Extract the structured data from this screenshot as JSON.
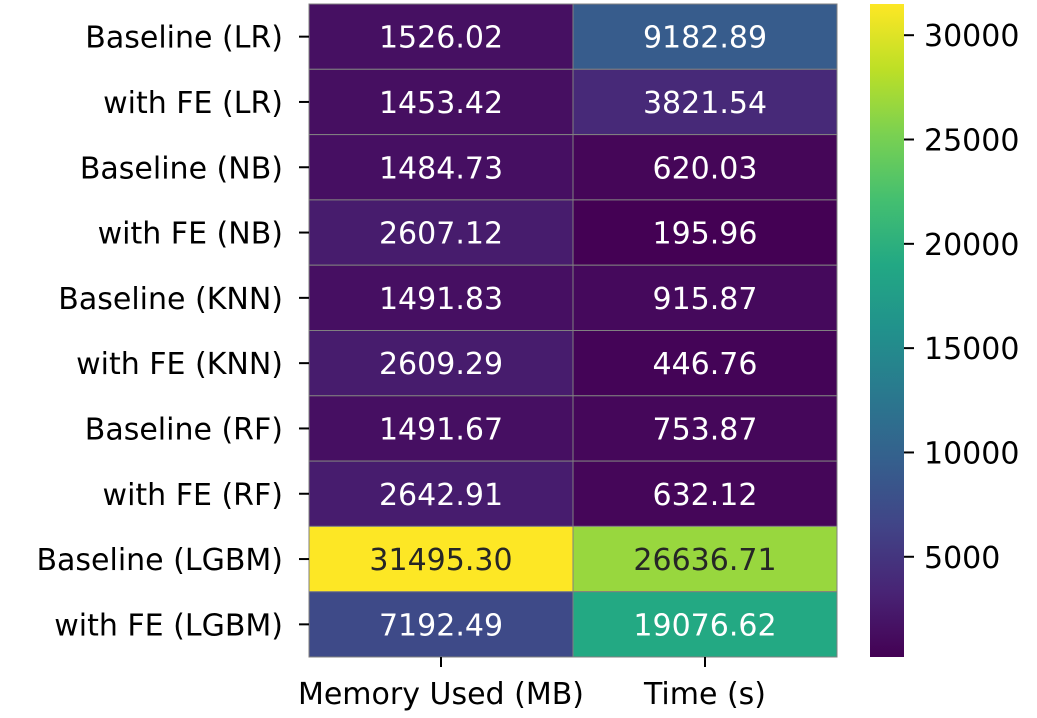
{
  "chart_data": {
    "type": "heatmap",
    "rows": [
      "Baseline (LR)",
      "with FE (LR)",
      "Baseline (NB)",
      "with FE (NB)",
      "Baseline (KNN)",
      "with FE (KNN)",
      "Baseline (RF)",
      "with FE (RF)",
      "Baseline (LGBM)",
      "with FE (LGBM)"
    ],
    "columns": [
      "Memory Used (MB)",
      "Time (s)"
    ],
    "values": [
      [
        1526.02,
        9182.89
      ],
      [
        1453.42,
        3821.54
      ],
      [
        1484.73,
        620.03
      ],
      [
        2607.12,
        195.96
      ],
      [
        1491.83,
        915.87
      ],
      [
        2609.29,
        446.76
      ],
      [
        1491.67,
        753.87
      ],
      [
        2642.91,
        632.12
      ],
      [
        31495.3,
        26636.71
      ],
      [
        7192.49,
        19076.62
      ]
    ],
    "value_labels": [
      [
        "1526.02",
        "9182.89"
      ],
      [
        "1453.42",
        "3821.54"
      ],
      [
        "1484.73",
        "620.03"
      ],
      [
        "2607.12",
        "195.96"
      ],
      [
        "1491.83",
        "915.87"
      ],
      [
        "2609.29",
        "446.76"
      ],
      [
        "1491.67",
        "753.87"
      ],
      [
        "2642.91",
        "632.12"
      ],
      [
        "31495.30",
        "26636.71"
      ],
      [
        "7192.49",
        "19076.62"
      ]
    ],
    "colormap": "viridis",
    "vmin": 195.96,
    "vmax": 31495.3,
    "colorbar": {
      "ticks": [
        5000,
        10000,
        15000,
        20000,
        25000,
        30000
      ],
      "tick_labels": [
        "5000",
        "10000",
        "15000",
        "20000",
        "25000",
        "30000"
      ],
      "placement": "right"
    },
    "title": "",
    "xlabel": "",
    "ylabel": ""
  }
}
